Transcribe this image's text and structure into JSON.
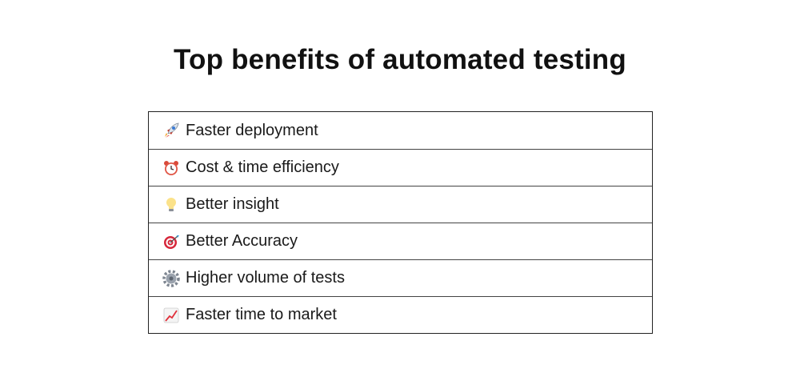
{
  "title": "Top benefits of automated testing",
  "benefits": [
    {
      "icon": "rocket-icon",
      "label": "Faster deployment"
    },
    {
      "icon": "alarm-clock-icon",
      "label": "Cost & time efficiency"
    },
    {
      "icon": "light-bulb-icon",
      "label": "Better insight"
    },
    {
      "icon": "target-icon",
      "label": "Better Accuracy"
    },
    {
      "icon": "gear-icon",
      "label": "Higher volume of tests"
    },
    {
      "icon": "chart-increasing-icon",
      "label": "Faster time to market"
    }
  ]
}
